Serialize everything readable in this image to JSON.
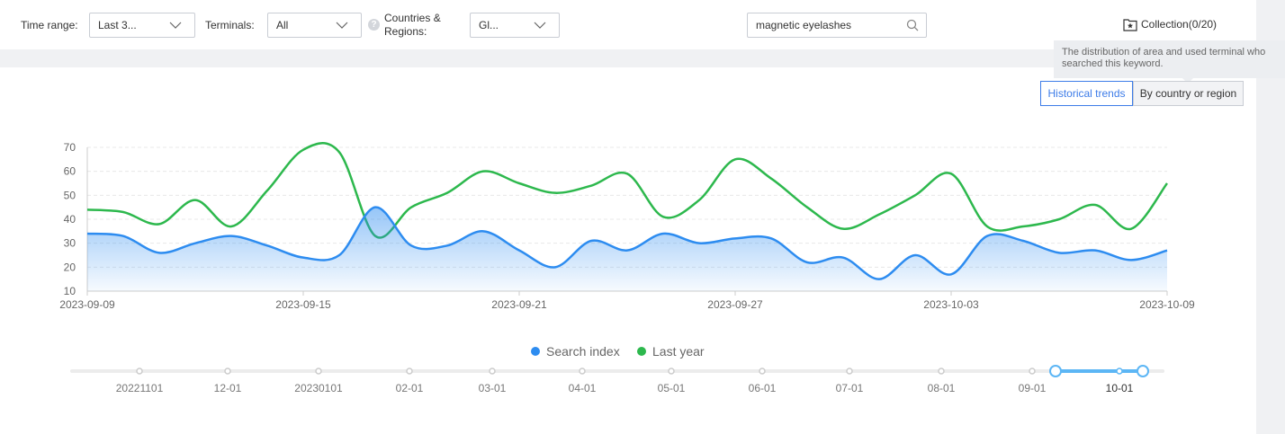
{
  "filters": {
    "time_range_label": "Time range:",
    "time_range_value": "Last 3...",
    "terminals_label": "Terminals:",
    "terminals_value": "All",
    "countries_label_line1": "Countries &",
    "countries_label_line2": "Regions:",
    "countries_value": "Gl...",
    "help_icon_text": "?"
  },
  "search": {
    "value": "magnetic eyelashes",
    "icon": "search-icon"
  },
  "collection": {
    "label": "Collection(0/20)",
    "icon": "star-folder-icon"
  },
  "tooltip": {
    "line1": "The distribution of area and used terminal who",
    "line2": "searched this keyword."
  },
  "tabs": {
    "historical": "Historical trends",
    "by_country": "By country or region"
  },
  "legend": [
    {
      "label": "Search index",
      "color": "#2d8cf0"
    },
    {
      "label": "Last year",
      "color": "#2db84d"
    }
  ],
  "chart_data": {
    "type": "line",
    "x_start": "2023-09-09",
    "x_end": "2023-10-09",
    "x_tick_labels": [
      "2023-09-09",
      "2023-09-15",
      "2023-09-21",
      "2023-09-27",
      "2023-10-03",
      "2023-10-09"
    ],
    "ylim": [
      10,
      70
    ],
    "y_ticks": [
      10,
      20,
      30,
      40,
      50,
      60,
      70
    ],
    "grid": true,
    "legend_position": "bottom",
    "series": [
      {
        "name": "Search index",
        "color": "#2d8cf0",
        "area": true,
        "values": [
          34,
          33,
          26,
          30,
          33,
          29,
          24,
          25,
          45,
          29,
          29,
          35,
          27,
          20,
          31,
          27,
          34,
          30,
          32,
          32,
          22,
          24,
          15,
          25,
          17,
          33,
          31,
          26,
          27,
          23,
          27
        ]
      },
      {
        "name": "Last year",
        "color": "#2db84d",
        "area": false,
        "values": [
          44,
          43,
          38,
          48,
          37,
          52,
          69,
          68,
          33,
          45,
          51,
          60,
          55,
          51,
          54,
          59,
          41,
          48,
          65,
          57,
          45,
          36,
          42,
          50,
          59,
          37,
          37,
          40,
          46,
          36,
          55
        ]
      }
    ]
  },
  "timeline": {
    "labels": [
      "20221101",
      "12-01",
      "20230101",
      "02-01",
      "03-01",
      "04-01",
      "05-01",
      "06-01",
      "07-01",
      "08-01",
      "09-01",
      "10-01"
    ],
    "selected_start": "2023-09-09",
    "selected_end": "2023-10-09"
  }
}
